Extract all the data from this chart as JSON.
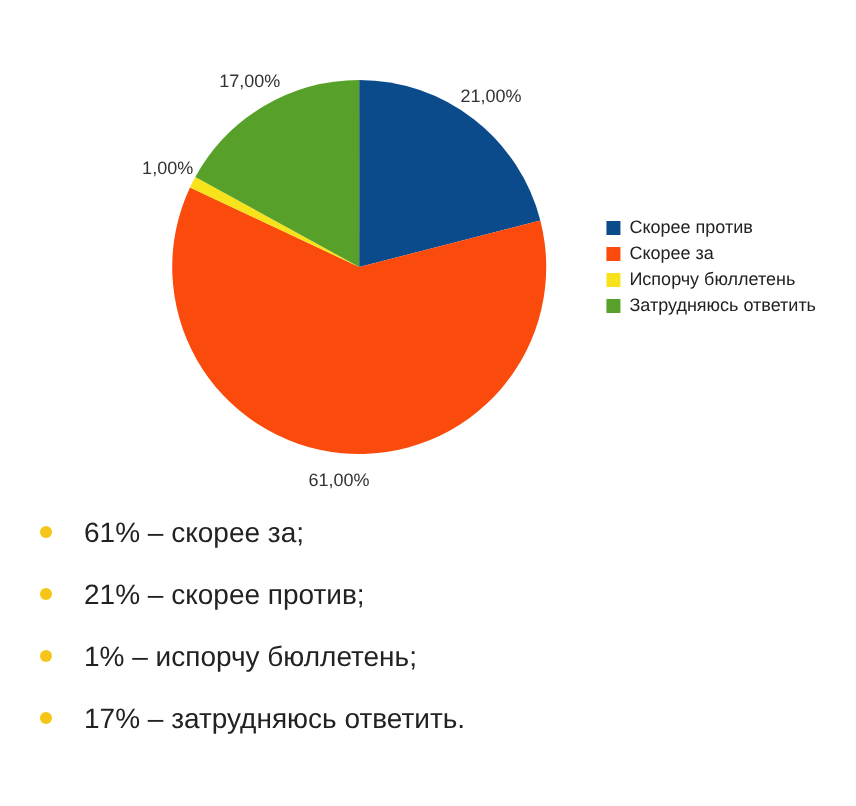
{
  "chart_data": {
    "type": "pie",
    "categories": [
      "Скорее против",
      "Скорее за",
      "Испорчу бюллетень",
      "Затрудняюсь ответить"
    ],
    "values": [
      21,
      61,
      1,
      17
    ],
    "colors": [
      "#0b4a8b",
      "#fa4a0c",
      "#f8e21a",
      "#57a12a"
    ],
    "value_labels": [
      "21,00%",
      "61,00%",
      "1,00%",
      "17,00%"
    ],
    "legend": "right",
    "annotations": [
      "61% – скорее за;",
      "21% – скорее против;",
      "1% – испорчу бюллетень;",
      "17% – затрудняюсь ответить."
    ]
  }
}
